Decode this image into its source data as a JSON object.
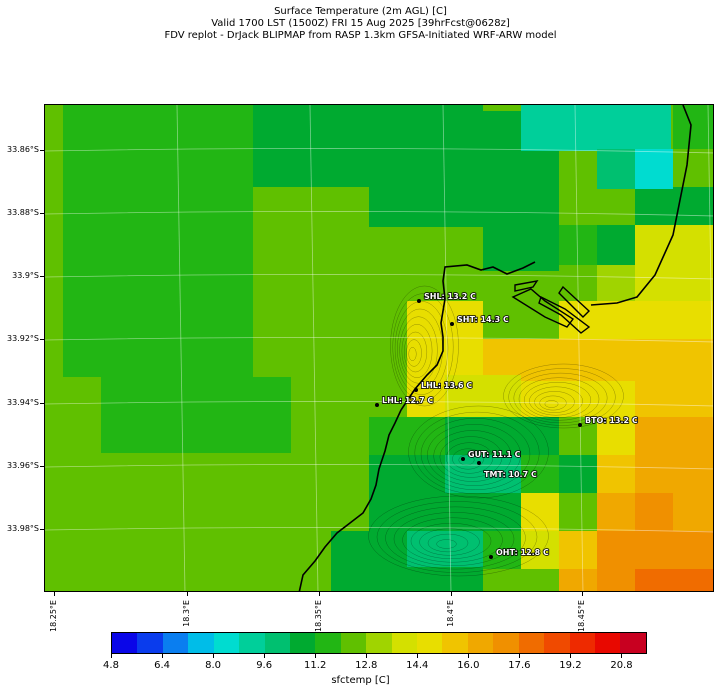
{
  "title_lines": [
    "Surface Temperature (2m AGL) [C]",
    "Valid 1700 LST (1500Z) FRI 15 Aug 2025 [39hrFcst@0628z]",
    "FDV replot - DrJack BLIPMAP from RASP 1.3km GFSA-Initiated WRF-ARW model"
  ],
  "map": {
    "lat_labels": [
      "33.86°S",
      "33.88°S",
      "33.9°S",
      "33.92°S",
      "33.94°S",
      "33.96°S",
      "33.98°S"
    ],
    "lon_labels": [
      "18.25°E",
      "18.3°E",
      "18.35°E",
      "18.4°E",
      "18.45°E"
    ],
    "stations": [
      {
        "code": "SHL",
        "label": "SHL: 13.2 C",
        "temp": 13.2
      },
      {
        "code": "SHT",
        "label": "SHT: 14.3 C",
        "temp": 14.3
      },
      {
        "code": "LHL",
        "label": "LHL: 13.6 C",
        "temp": 13.6
      },
      {
        "code": "LHL",
        "label": "LHL: 12.7 C",
        "temp": 12.7
      },
      {
        "code": "BTO",
        "label": "BTO: 13.2 C",
        "temp": 13.2
      },
      {
        "code": "GUT",
        "label": "GUT: 11.1 C",
        "temp": 11.1
      },
      {
        "code": "TMT",
        "label": "TMT: 10.7 C",
        "temp": 10.7
      },
      {
        "code": "OHT",
        "label": "OHT: 12.8 C",
        "temp": 12.8
      }
    ]
  },
  "colorbar": {
    "title": "sfctemp [C]",
    "tick_labels": [
      "4.8",
      "6.4",
      "8.0",
      "9.6",
      "11.2",
      "12.8",
      "14.4",
      "16.0",
      "17.6",
      "19.2",
      "20.8"
    ],
    "colors": [
      "#0a06e8",
      "#0a3ced",
      "#0a7ef0",
      "#00bde8",
      "#00dcd0",
      "#00cf9a",
      "#00c070",
      "#00aa30",
      "#22b614",
      "#60c000",
      "#a0d400",
      "#d4e000",
      "#e8de00",
      "#f0c400",
      "#f0a800",
      "#f09000",
      "#f06c00",
      "#f04a00",
      "#ee2a00",
      "#e80800",
      "#c80020"
    ],
    "value_range": [
      4.0,
      21.6
    ]
  }
}
